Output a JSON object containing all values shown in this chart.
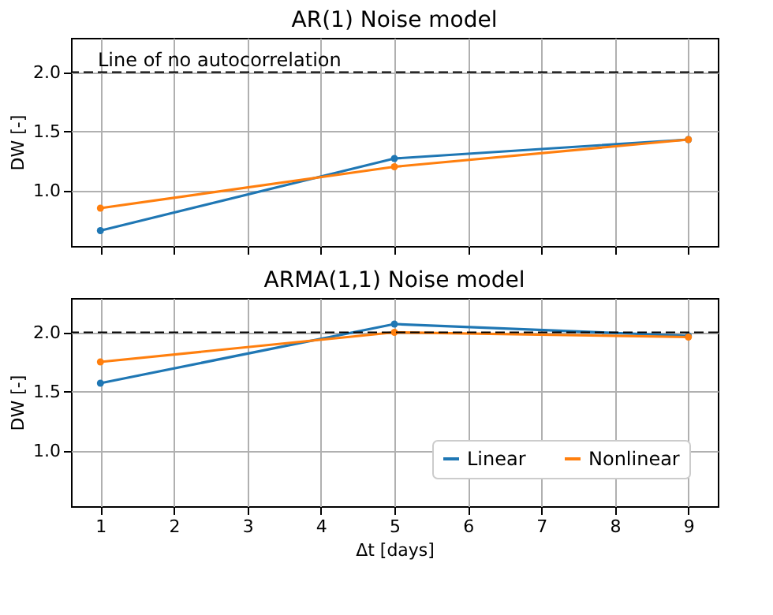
{
  "chart_data": [
    {
      "type": "line",
      "title": "AR(1) Noise model",
      "ylabel": "DW [-]",
      "x": [
        1,
        5,
        9
      ],
      "series": [
        {
          "color": "#1f77b4",
          "values": [
            0.66,
            1.27,
            1.43
          ]
        },
        {
          "color": "#ff7f0e",
          "values": [
            0.85,
            1.2,
            1.43
          ]
        }
      ],
      "xlim": [
        0.6,
        9.4
      ],
      "xticks": [
        1,
        2,
        3,
        4,
        5,
        6,
        7,
        8,
        9
      ],
      "ylim": [
        0.53,
        2.29
      ],
      "yticks": [
        {
          "value": 1,
          "label": "1.0"
        },
        1.5,
        {
          "value": 2,
          "label": "2.0"
        }
      ],
      "ref_lines": [
        {
          "axis": "y",
          "value": 2.0,
          "label": "Line of no autocorrelation",
          "color": "#000000",
          "line_style": "dashed"
        }
      ],
      "tick_labels": "y",
      "grid": true,
      "legend": false,
      "marker": "circle",
      "line_style": "solid"
    },
    {
      "type": "line",
      "title": "ARMA(1,1) Noise model",
      "xlabel": "Δt [days]",
      "ylabel": "DW [-]",
      "x": [
        1,
        5,
        9
      ],
      "series": [
        {
          "name": "Linear",
          "color": "#1f77b4",
          "values": [
            1.57,
            2.07,
            1.97
          ]
        },
        {
          "name": "Nonlinear",
          "color": "#ff7f0e",
          "values": [
            1.75,
            2.0,
            1.96
          ]
        }
      ],
      "xlim": [
        0.6,
        9.4
      ],
      "xticks": [
        1,
        2,
        3,
        4,
        5,
        6,
        7,
        8,
        9
      ],
      "ylim": [
        0.53,
        2.29
      ],
      "yticks": [
        {
          "value": 1,
          "label": "1.0"
        },
        1.5,
        {
          "value": 2,
          "label": "2.0"
        }
      ],
      "ref_lines": [
        {
          "axis": "y",
          "value": 2.0,
          "color": "#000000",
          "line_style": "dashed"
        }
      ],
      "grid": true,
      "legend": "bottom right",
      "marker": "circle",
      "line_style": "solid"
    }
  ]
}
